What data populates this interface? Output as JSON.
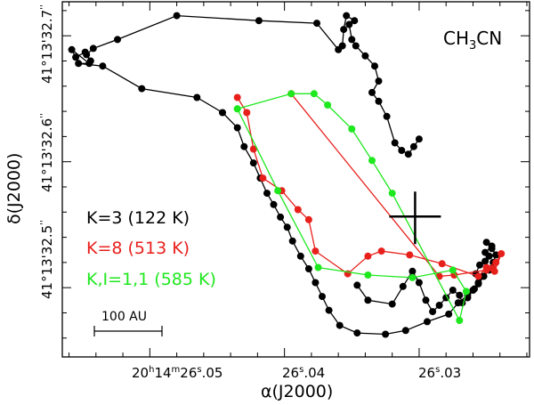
{
  "chart_data": {
    "type": "line",
    "title": "CH3CN",
    "title_parts": {
      "base": "CH",
      "sub1": "3",
      "tail": "CN"
    },
    "xlabel": "α(J2000)",
    "ylabel": "δ(J2000)",
    "xlim": [
      26.0565,
      26.0218
    ],
    "ylim": [
      32.445,
      32.727
    ],
    "grid": false,
    "legend_position": "left",
    "x_ticks": [
      {
        "value": 26.05,
        "label_main": "20",
        "sup1": "h",
        "label_mid": "14",
        "sup2": "m",
        "label_sec": "26",
        "sup3": "s",
        "label_dec": ".05"
      },
      {
        "value": 26.04,
        "label_main": "26",
        "sup3": "s",
        "label_dec": ".04"
      },
      {
        "value": 26.03,
        "label_main": "26",
        "sup3": "s",
        "label_dec": ".03"
      }
    ],
    "y_ticks": [
      {
        "value": 32.5,
        "label": "41°13'32.5",
        "sup": "''"
      },
      {
        "value": 32.6,
        "label": "41°13'32.6",
        "sup": "''"
      },
      {
        "value": 32.7,
        "label": "41°13'32.7",
        "sup": "''"
      }
    ],
    "minor_x_step": 0.002,
    "minor_y_step": 0.02,
    "scale_bar": {
      "label": "100 AU",
      "length_arcsec": 0.06
    },
    "marker": {
      "name": "continuum peak",
      "x": 26.0303,
      "y": 32.5565
    },
    "colors": {
      "k3": "#000000",
      "k8": "#e8201c",
      "v": "#1ee81e",
      "axes": "#000000"
    },
    "series": [
      {
        "name": "K=3 (122 K)",
        "color": "#000000",
        "points": [
          [
            26.03,
            32.618
          ],
          [
            26.0304,
            32.612
          ],
          [
            26.0308,
            32.606
          ],
          [
            26.0313,
            32.609
          ],
          [
            26.0318,
            32.615
          ],
          [
            26.0324,
            32.636
          ],
          [
            26.033,
            32.648
          ],
          [
            26.0335,
            32.655
          ],
          [
            26.033,
            32.664
          ],
          [
            26.0333,
            32.676
          ],
          [
            26.034,
            32.684
          ],
          [
            26.0347,
            32.692
          ],
          [
            26.035,
            32.697
          ],
          [
            26.0352,
            32.709
          ],
          [
            26.0348,
            32.712
          ],
          [
            26.0354,
            32.716
          ],
          [
            26.0356,
            32.705
          ],
          [
            26.0357,
            32.692
          ],
          [
            26.036,
            32.689
          ],
          [
            26.0376,
            32.71
          ],
          [
            26.0419,
            32.712
          ],
          [
            26.048,
            32.716
          ],
          [
            26.0524,
            32.697
          ],
          [
            26.0542,
            32.69
          ],
          [
            26.0547,
            32.685
          ],
          [
            26.0544,
            32.68
          ],
          [
            26.0548,
            32.687
          ],
          [
            26.0555,
            32.683
          ],
          [
            26.0558,
            32.689
          ],
          [
            26.0545,
            32.678
          ],
          [
            26.0553,
            32.678
          ],
          [
            26.0535,
            32.676
          ],
          [
            26.0506,
            32.658
          ],
          [
            26.0465,
            32.651
          ],
          [
            26.0446,
            32.639
          ],
          [
            26.0435,
            32.627
          ],
          [
            26.043,
            32.612
          ],
          [
            26.0423,
            32.599
          ],
          [
            26.0418,
            32.587
          ],
          [
            26.0413,
            32.575
          ],
          [
            26.0408,
            32.566
          ],
          [
            26.0403,
            32.556
          ],
          [
            26.0398,
            32.548
          ],
          [
            26.0394,
            32.537
          ],
          [
            26.0388,
            32.525
          ],
          [
            26.0382,
            32.515
          ],
          [
            26.0377,
            32.504
          ],
          [
            26.0372,
            32.493
          ],
          [
            26.0367,
            32.482
          ],
          [
            26.0359,
            32.47
          ],
          [
            26.0346,
            32.464
          ],
          [
            26.0325,
            32.463
          ],
          [
            26.031,
            32.466
          ],
          [
            26.0294,
            32.473
          ],
          [
            26.0278,
            32.479
          ],
          [
            26.0271,
            32.488
          ],
          [
            26.0264,
            32.494
          ],
          [
            26.0259,
            32.499
          ],
          [
            26.0256,
            32.504
          ],
          [
            26.0253,
            32.509
          ],
          [
            26.0258,
            32.511
          ],
          [
            26.0255,
            32.518
          ],
          [
            26.0251,
            32.521
          ],
          [
            26.0248,
            32.525
          ],
          [
            26.0251,
            32.528
          ],
          [
            26.0246,
            32.533
          ],
          [
            26.025,
            32.536
          ],
          [
            26.0246,
            32.531
          ],
          [
            26.0243,
            32.526
          ],
          [
            26.0245,
            32.52
          ],
          [
            26.0248,
            32.514
          ],
          [
            26.0252,
            32.509
          ],
          [
            26.0256,
            32.503
          ],
          [
            26.026,
            32.498
          ],
          [
            26.0264,
            32.492
          ],
          [
            26.0268,
            32.488
          ],
          [
            26.027,
            32.494
          ],
          [
            26.0275,
            32.498
          ],
          [
            26.028,
            32.492
          ],
          [
            26.0285,
            32.486
          ],
          [
            26.029,
            32.481
          ],
          [
            26.0295,
            32.49
          ],
          [
            26.03,
            32.504
          ],
          [
            26.0305,
            32.513
          ],
          [
            26.0312,
            32.501
          ],
          [
            26.032,
            32.487
          ],
          [
            26.0338,
            32.49
          ],
          [
            26.0346,
            32.502
          ]
        ]
      },
      {
        "name": "K=8 (513 K)",
        "color": "#e8201c",
        "points": [
          [
            26.0435,
            32.651
          ],
          [
            26.0428,
            32.639
          ],
          [
            26.0423,
            32.61
          ],
          [
            26.0416,
            32.587
          ],
          [
            26.0402,
            32.577
          ],
          [
            26.039,
            32.562
          ],
          [
            26.0382,
            32.554
          ],
          [
            26.0377,
            32.529
          ],
          [
            26.0353,
            32.511
          ],
          [
            26.0338,
            32.525
          ],
          [
            26.0328,
            32.529
          ],
          [
            26.0307,
            32.526
          ],
          [
            26.0283,
            32.519
          ],
          [
            26.0256,
            32.509
          ],
          [
            26.025,
            32.516
          ],
          [
            26.0243,
            32.52
          ],
          [
            26.0239,
            32.527
          ],
          [
            26.0244,
            32.513
          ],
          [
            26.0245,
            32.515
          ],
          [
            26.025,
            32.514
          ],
          [
            26.0274,
            32.51
          ],
          [
            26.0285,
            32.509
          ],
          [
            26.0395,
            32.654
          ]
        ]
      },
      {
        "name": "K,I=1,1 (585 K)",
        "color": "#1ee81e",
        "points": [
          [
            26.0435,
            32.642
          ],
          [
            26.0405,
            32.577
          ],
          [
            26.0375,
            32.516
          ],
          [
            26.0338,
            32.51
          ],
          [
            26.0305,
            32.508
          ],
          [
            26.0275,
            32.514
          ],
          [
            26.0265,
            32.497
          ],
          [
            26.027,
            32.474
          ],
          [
            26.032,
            32.575
          ],
          [
            26.0335,
            32.601
          ],
          [
            26.035,
            32.626
          ],
          [
            26.0368,
            32.645
          ],
          [
            26.0378,
            32.654
          ],
          [
            26.0395,
            32.654
          ],
          [
            26.0435,
            32.642
          ]
        ]
      }
    ]
  }
}
